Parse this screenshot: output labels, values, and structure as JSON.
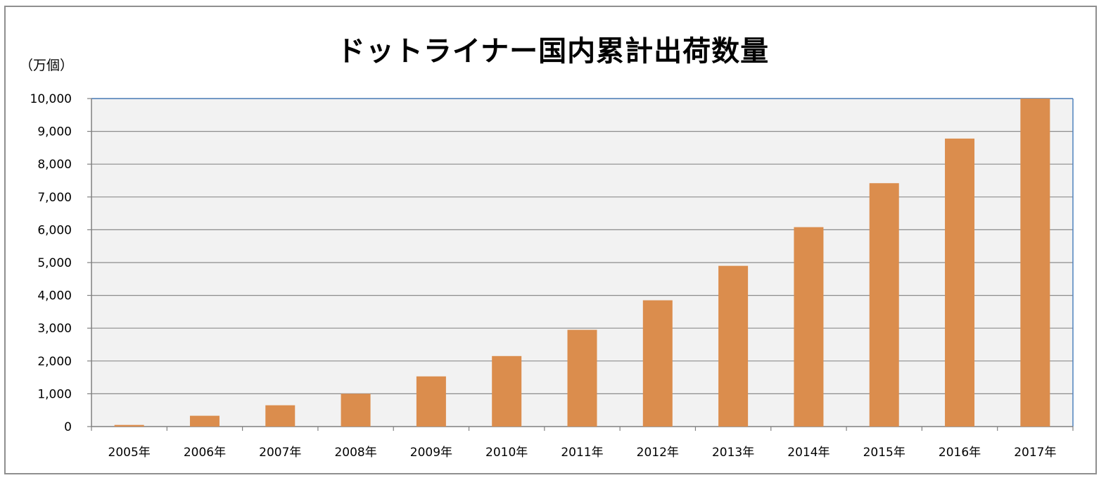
{
  "chart_data": {
    "type": "bar",
    "title": "ドットライナー国内累計出荷数量",
    "unit_label": "（万個）",
    "xlabel": "",
    "ylabel": "",
    "categories": [
      "2005年",
      "2006年",
      "2007年",
      "2008年",
      "2009年",
      "2010年",
      "2011年",
      "2012年",
      "2013年",
      "2014年",
      "2015年",
      "2016年",
      "2017年"
    ],
    "values": [
      50,
      330,
      650,
      1000,
      1530,
      2150,
      2950,
      3850,
      4900,
      6080,
      7420,
      8780,
      10000
    ],
    "ylim": [
      0,
      10000
    ],
    "yticks": [
      "0",
      "1,000",
      "2,000",
      "3,000",
      "4,000",
      "5,000",
      "6,000",
      "7,000",
      "8,000",
      "9,000",
      "10,000"
    ],
    "grid": true,
    "legend": "none",
    "colors": {
      "bar": "#DB8D4D",
      "plot_bg": "#F2F2F2",
      "grid": "#8C8C8C",
      "border": "#4F81BD"
    }
  }
}
